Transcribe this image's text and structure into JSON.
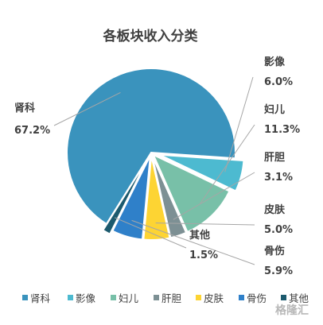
{
  "chart_data": {
    "type": "pie",
    "title": "各板块收入分类",
    "slices": [
      {
        "name": "肾科",
        "value": 67.2,
        "label": "67.2%",
        "color": "#3a93bd"
      },
      {
        "name": "影像",
        "value": 6.0,
        "label": "6.0%",
        "color": "#4dbad0"
      },
      {
        "name": "妇儿",
        "value": 11.3,
        "label": "11.3%",
        "color": "#78c0a8"
      },
      {
        "name": "肝胆",
        "value": 3.1,
        "label": "3.1%",
        "color": "#7d9094"
      },
      {
        "name": "皮肤",
        "value": 5.0,
        "label": "5.0%",
        "color": "#fdd433"
      },
      {
        "name": "骨伤",
        "value": 5.9,
        "label": "5.9%",
        "color": "#2f80c9"
      },
      {
        "name": "其他",
        "value": 1.5,
        "label": "1.5%",
        "color": "#1c5a6e"
      }
    ],
    "legend_position": "bottom"
  },
  "watermark": "格隆汇"
}
